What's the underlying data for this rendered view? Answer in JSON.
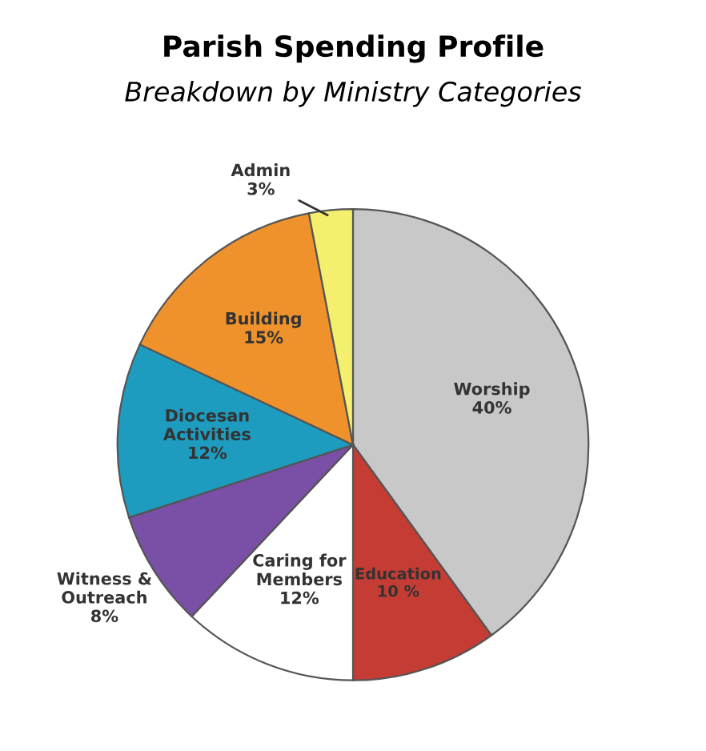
{
  "chart_data": {
    "type": "pie",
    "title": "Parish Spending Profile",
    "subtitle": "Breakdown by Ministry Categories",
    "categories": [
      "Worship",
      "Education",
      "Caring for\nMembers",
      "Witness &\nOutreach",
      "Diocesan\nActivities",
      "Building",
      "Admin"
    ],
    "values": [
      40,
      10,
      12,
      8,
      12,
      15,
      3
    ],
    "value_labels": [
      "40%",
      "10 %",
      "12%",
      "8%",
      "12%",
      "15%",
      "3%"
    ],
    "colors": [
      "#c8c8c8",
      "#c43c34",
      "#ffffff",
      "#7a4fa6",
      "#1e9cc0",
      "#f0922c",
      "#f4ef6c"
    ]
  }
}
